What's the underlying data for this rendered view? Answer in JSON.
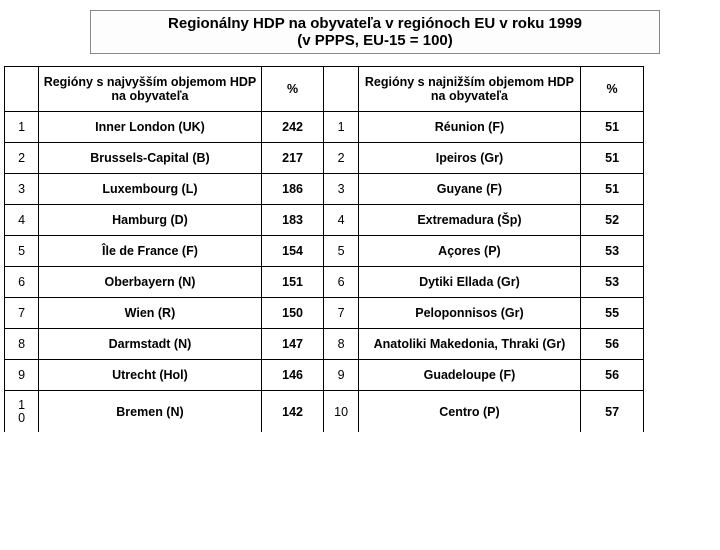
{
  "title": {
    "line1": "Regionálny HDP na obyvateľa v regiónoch EU v roku 1999",
    "line2": "(v PPPS, EU-15 = 100)"
  },
  "headers": {
    "high_region": "Regióny s najvyšším objemom HDP na obyvateľa",
    "pct1": "%",
    "low_region": "Regióny s najnižším objemom HDP na obyvateľa",
    "pct2": "%"
  },
  "rows": [
    {
      "r1": "1",
      "reg1": "Inner London (UK)",
      "v1": "242",
      "r2": "1",
      "reg2": "Réunion (F)",
      "v2": "51"
    },
    {
      "r1": "2",
      "reg1": "Brussels-Capital (B)",
      "v1": "217",
      "r2": "2",
      "reg2": "Ipeiros (Gr)",
      "v2": "51"
    },
    {
      "r1": "3",
      "reg1": "Luxembourg (L)",
      "v1": "186",
      "r2": "3",
      "reg2": "Guyane (F)",
      "v2": "51"
    },
    {
      "r1": "4",
      "reg1": "Hamburg (D)",
      "v1": "183",
      "r2": "4",
      "reg2": "Extremadura (Šp)",
      "v2": "52"
    },
    {
      "r1": "5",
      "reg1": "Île de France (F)",
      "v1": "154",
      "r2": "5",
      "reg2": "Açores (P)",
      "v2": "53"
    },
    {
      "r1": "6",
      "reg1": "Oberbayern (N)",
      "v1": "151",
      "r2": "6",
      "reg2": "Dytiki Ellada (Gr)",
      "v2": "53"
    },
    {
      "r1": "7",
      "reg1": "Wien (R)",
      "v1": "150",
      "r2": "7",
      "reg2": "Peloponnisos (Gr)",
      "v2": "55"
    },
    {
      "r1": "8",
      "reg1": "Darmstadt (N)",
      "v1": "147",
      "r2": "8",
      "reg2": "Anatoliki Makedonia, Thraki (Gr)",
      "v2": "56"
    },
    {
      "r1": "9",
      "reg1": "Utrecht (Hol)",
      "v1": "146",
      "r2": "9",
      "reg2": "Guadeloupe (F)",
      "v2": "56"
    },
    {
      "r1": "10",
      "reg1": "Bremen (N)",
      "v1": "142",
      "r2": "10",
      "reg2": "Centro (P)",
      "v2": "57"
    }
  ],
  "last_rank_display": "1\n0",
  "colors": {
    "border": "#000000",
    "title_border": "#888888",
    "background": "#ffffff"
  },
  "fonts": {
    "title_size": 15,
    "cell_size": 12.5
  }
}
